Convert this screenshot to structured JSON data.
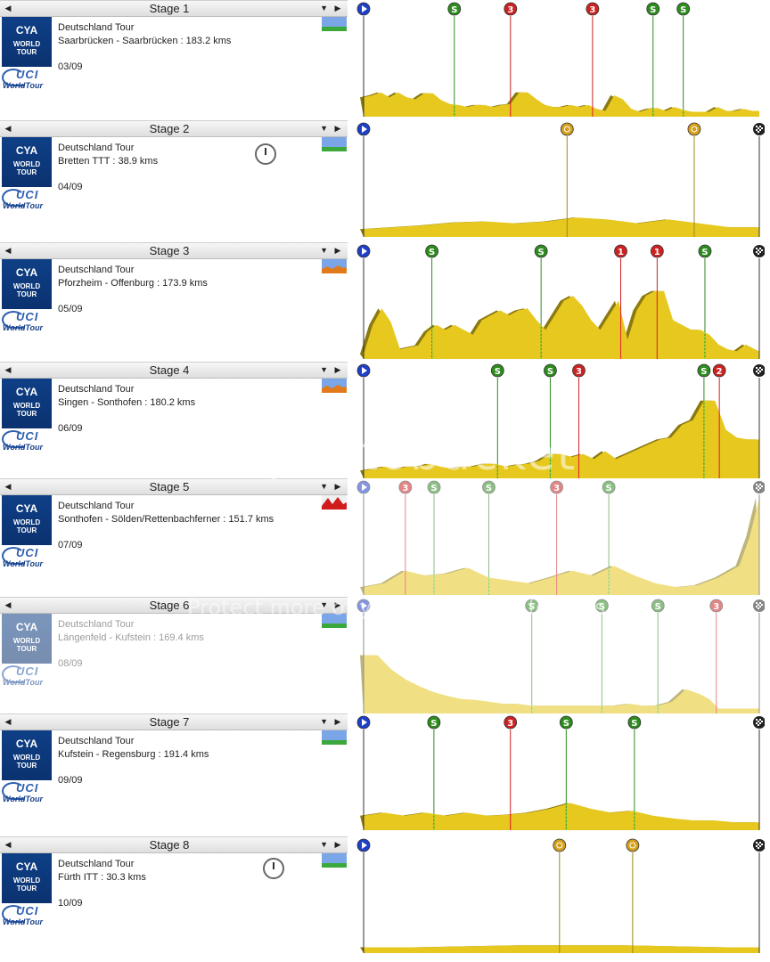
{
  "stages": [
    {
      "label": "Stage 1",
      "tour": "Deutschland Tour",
      "route": "Saarbrücken - Saarbrücken : 183.2 kms",
      "date": "03/09",
      "type": "flat",
      "finish": false,
      "profile": [
        [
          0,
          20
        ],
        [
          4,
          22
        ],
        [
          8,
          25
        ],
        [
          12,
          20
        ],
        [
          16,
          25
        ],
        [
          20,
          20
        ],
        [
          24,
          18
        ],
        [
          28,
          24
        ],
        [
          32,
          24
        ],
        [
          36,
          17
        ],
        [
          40,
          13
        ],
        [
          44,
          12
        ],
        [
          48,
          10
        ],
        [
          52,
          12
        ],
        [
          56,
          12
        ],
        [
          60,
          10
        ],
        [
          64,
          12
        ],
        [
          68,
          13
        ],
        [
          72,
          25
        ],
        [
          76,
          25
        ],
        [
          80,
          18
        ],
        [
          84,
          12
        ],
        [
          88,
          10
        ],
        [
          92,
          10
        ],
        [
          96,
          12
        ],
        [
          100,
          10
        ],
        [
          104,
          12
        ],
        [
          108,
          8
        ],
        [
          112,
          6
        ],
        [
          116,
          22
        ],
        [
          120,
          18
        ],
        [
          124,
          8
        ],
        [
          128,
          5
        ],
        [
          132,
          8
        ],
        [
          136,
          9
        ],
        [
          140,
          6
        ],
        [
          144,
          10
        ],
        [
          148,
          7
        ],
        [
          152,
          5
        ],
        [
          156,
          5
        ],
        [
          160,
          5
        ],
        [
          164,
          10
        ],
        [
          168,
          6
        ],
        [
          172,
          6
        ],
        [
          176,
          8
        ],
        [
          180,
          6
        ],
        [
          183.2,
          6
        ]
      ],
      "markers": [
        {
          "km": 0,
          "kind": "start",
          "label": ""
        },
        {
          "km": 42,
          "kind": "sprint",
          "label": "S"
        },
        {
          "km": 68,
          "kind": "climb",
          "label": "3"
        },
        {
          "km": 106,
          "kind": "climb",
          "label": "3"
        },
        {
          "km": 134,
          "kind": "sprint",
          "label": "S"
        },
        {
          "km": 148,
          "kind": "sprint",
          "label": "S"
        }
      ]
    },
    {
      "label": "Stage 2",
      "tour": "Deutschland Tour",
      "route": "Bretten TTT : 38.9 kms",
      "date": "04/09",
      "type": "flat",
      "finish": true,
      "clock": true,
      "profile": [
        [
          0,
          8
        ],
        [
          3,
          10
        ],
        [
          6,
          12
        ],
        [
          9,
          15
        ],
        [
          12,
          16
        ],
        [
          15,
          14
        ],
        [
          18,
          16
        ],
        [
          21,
          20
        ],
        [
          24,
          18
        ],
        [
          27,
          14
        ],
        [
          30,
          18
        ],
        [
          33,
          14
        ],
        [
          36,
          10
        ],
        [
          38.9,
          10
        ]
      ],
      "markers": [
        {
          "km": 0,
          "kind": "start",
          "label": ""
        },
        {
          "km": 20,
          "kind": "time",
          "label": ""
        },
        {
          "km": 32.5,
          "kind": "time",
          "label": ""
        },
        {
          "km": 38.9,
          "kind": "finish",
          "label": ""
        }
      ]
    },
    {
      "label": "Stage 3",
      "tour": "Deutschland Tour",
      "route": "Pforzheim - Offenburg : 173.9 kms",
      "date": "05/09",
      "type": "hilly",
      "finish": true,
      "profile": [
        [
          0,
          5
        ],
        [
          4,
          35
        ],
        [
          8,
          52
        ],
        [
          12,
          38
        ],
        [
          16,
          10
        ],
        [
          20,
          12
        ],
        [
          24,
          14
        ],
        [
          28,
          28
        ],
        [
          32,
          35
        ],
        [
          36,
          30
        ],
        [
          40,
          35
        ],
        [
          44,
          30
        ],
        [
          48,
          25
        ],
        [
          52,
          40
        ],
        [
          56,
          45
        ],
        [
          60,
          50
        ],
        [
          64,
          45
        ],
        [
          68,
          50
        ],
        [
          72,
          52
        ],
        [
          76,
          40
        ],
        [
          80,
          30
        ],
        [
          84,
          45
        ],
        [
          88,
          60
        ],
        [
          92,
          65
        ],
        [
          96,
          55
        ],
        [
          100,
          40
        ],
        [
          104,
          30
        ],
        [
          108,
          45
        ],
        [
          112,
          60
        ],
        [
          116,
          20
        ],
        [
          120,
          50
        ],
        [
          124,
          65
        ],
        [
          128,
          70
        ],
        [
          132,
          70
        ],
        [
          136,
          40
        ],
        [
          140,
          35
        ],
        [
          144,
          30
        ],
        [
          148,
          30
        ],
        [
          152,
          25
        ],
        [
          156,
          15
        ],
        [
          160,
          10
        ],
        [
          164,
          8
        ],
        [
          168,
          15
        ],
        [
          172,
          10
        ],
        [
          173.9,
          8
        ]
      ],
      "markers": [
        {
          "km": 0,
          "kind": "start",
          "label": ""
        },
        {
          "km": 30,
          "kind": "sprint",
          "label": "S"
        },
        {
          "km": 78,
          "kind": "sprint",
          "label": "S"
        },
        {
          "km": 113,
          "kind": "climb",
          "label": "1"
        },
        {
          "km": 129,
          "kind": "climb",
          "label": "1"
        },
        {
          "km": 150,
          "kind": "sprint",
          "label": "S"
        },
        {
          "km": 173.9,
          "kind": "finish",
          "label": ""
        }
      ]
    },
    {
      "label": "Stage 4",
      "tour": "Deutschland Tour",
      "route": "Singen - Sonthofen : 180.2 kms",
      "date": "06/09",
      "type": "hilly",
      "finish": true,
      "profile": [
        [
          0,
          8
        ],
        [
          5,
          10
        ],
        [
          10,
          12
        ],
        [
          15,
          10
        ],
        [
          20,
          12
        ],
        [
          25,
          12
        ],
        [
          30,
          15
        ],
        [
          35,
          12
        ],
        [
          40,
          10
        ],
        [
          45,
          12
        ],
        [
          50,
          12
        ],
        [
          55,
          15
        ],
        [
          60,
          15
        ],
        [
          65,
          12
        ],
        [
          70,
          14
        ],
        [
          75,
          15
        ],
        [
          80,
          18
        ],
        [
          85,
          25
        ],
        [
          90,
          25
        ],
        [
          95,
          22
        ],
        [
          100,
          25
        ],
        [
          105,
          20
        ],
        [
          110,
          28
        ],
        [
          115,
          20
        ],
        [
          120,
          25
        ],
        [
          125,
          30
        ],
        [
          130,
          35
        ],
        [
          135,
          40
        ],
        [
          140,
          42
        ],
        [
          145,
          55
        ],
        [
          150,
          60
        ],
        [
          155,
          80
        ],
        [
          160,
          80
        ],
        [
          165,
          50
        ],
        [
          170,
          42
        ],
        [
          175,
          40
        ],
        [
          180.2,
          40
        ]
      ],
      "markers": [
        {
          "km": 0,
          "kind": "start",
          "label": ""
        },
        {
          "km": 61,
          "kind": "sprint",
          "label": "S"
        },
        {
          "km": 85,
          "kind": "sprint",
          "label": "S"
        },
        {
          "km": 98,
          "kind": "climb",
          "label": "3"
        },
        {
          "km": 155,
          "kind": "sprint",
          "label": "S"
        },
        {
          "km": 162,
          "kind": "climb",
          "label": "2"
        },
        {
          "km": 180.2,
          "kind": "finish",
          "label": ""
        }
      ]
    },
    {
      "label": "Stage 5",
      "tour": "Deutschland Tour",
      "route": "Sonthofen - Sölden/Rettenbachferner : 151.7 kms",
      "date": "07/09",
      "type": "mountain",
      "finish": true,
      "faded": true,
      "profile": [
        [
          0,
          8
        ],
        [
          8,
          12
        ],
        [
          16,
          25
        ],
        [
          24,
          20
        ],
        [
          32,
          22
        ],
        [
          40,
          28
        ],
        [
          48,
          18
        ],
        [
          56,
          15
        ],
        [
          64,
          12
        ],
        [
          72,
          18
        ],
        [
          80,
          25
        ],
        [
          88,
          20
        ],
        [
          96,
          30
        ],
        [
          104,
          20
        ],
        [
          112,
          12
        ],
        [
          120,
          8
        ],
        [
          128,
          10
        ],
        [
          136,
          18
        ],
        [
          144,
          30
        ],
        [
          148,
          60
        ],
        [
          151.7,
          100
        ]
      ],
      "markers": [
        {
          "km": 0,
          "kind": "start",
          "label": ""
        },
        {
          "km": 16,
          "kind": "climb",
          "label": "3"
        },
        {
          "km": 27,
          "kind": "sprint",
          "label": "S"
        },
        {
          "km": 48,
          "kind": "sprint",
          "label": "S"
        },
        {
          "km": 74,
          "kind": "climb",
          "label": "3"
        },
        {
          "km": 94,
          "kind": "sprint",
          "label": "S"
        },
        {
          "km": 151.7,
          "kind": "finish",
          "label": ""
        }
      ]
    },
    {
      "label": "Stage 6",
      "tour": "Deutschland Tour",
      "route": "Längenfeld - Kufstein : 169.4 kms",
      "date": "08/09",
      "type": "flat",
      "finish": true,
      "faded": true,
      "profile": [
        [
          0,
          60
        ],
        [
          6,
          60
        ],
        [
          12,
          45
        ],
        [
          18,
          35
        ],
        [
          24,
          28
        ],
        [
          30,
          22
        ],
        [
          36,
          18
        ],
        [
          42,
          15
        ],
        [
          48,
          14
        ],
        [
          54,
          12
        ],
        [
          60,
          10
        ],
        [
          66,
          10
        ],
        [
          72,
          8
        ],
        [
          78,
          8
        ],
        [
          84,
          8
        ],
        [
          90,
          8
        ],
        [
          96,
          8
        ],
        [
          102,
          8
        ],
        [
          108,
          8
        ],
        [
          114,
          10
        ],
        [
          120,
          8
        ],
        [
          126,
          8
        ],
        [
          132,
          12
        ],
        [
          138,
          25
        ],
        [
          144,
          20
        ],
        [
          148,
          15
        ],
        [
          152,
          5
        ],
        [
          160,
          5
        ],
        [
          169.4,
          5
        ]
      ],
      "markers": [
        {
          "km": 0,
          "kind": "start",
          "label": ""
        },
        {
          "km": 72,
          "kind": "sprint",
          "label": "S"
        },
        {
          "km": 102,
          "kind": "sprint",
          "label": "S"
        },
        {
          "km": 126,
          "kind": "sprint",
          "label": "S"
        },
        {
          "km": 151,
          "kind": "climb",
          "label": "3"
        },
        {
          "km": 169.4,
          "kind": "finish",
          "label": ""
        }
      ]
    },
    {
      "label": "Stage 7",
      "tour": "Deutschland Tour",
      "route": "Kufstein - Regensburg : 191.4 kms",
      "date": "09/09",
      "type": "flat",
      "finish": true,
      "profile": [
        [
          0,
          15
        ],
        [
          10,
          18
        ],
        [
          20,
          15
        ],
        [
          30,
          18
        ],
        [
          40,
          15
        ],
        [
          50,
          18
        ],
        [
          60,
          15
        ],
        [
          70,
          16
        ],
        [
          80,
          18
        ],
        [
          90,
          22
        ],
        [
          100,
          28
        ],
        [
          110,
          22
        ],
        [
          120,
          18
        ],
        [
          130,
          20
        ],
        [
          140,
          15
        ],
        [
          150,
          12
        ],
        [
          160,
          10
        ],
        [
          170,
          10
        ],
        [
          180,
          8
        ],
        [
          191.4,
          8
        ]
      ],
      "markers": [
        {
          "km": 0,
          "kind": "start",
          "label": ""
        },
        {
          "km": 34,
          "kind": "sprint",
          "label": "S"
        },
        {
          "km": 71,
          "kind": "climb",
          "label": "3"
        },
        {
          "km": 98,
          "kind": "sprint",
          "label": "S"
        },
        {
          "km": 131,
          "kind": "sprint",
          "label": "S"
        },
        {
          "km": 191.4,
          "kind": "finish",
          "label": ""
        }
      ]
    },
    {
      "label": "Stage 8",
      "tour": "Deutschland Tour",
      "route": "Fürth ITT : 30.3 kms",
      "date": "10/09",
      "type": "flat",
      "finish": true,
      "clock": true,
      "profile": [
        [
          0,
          6
        ],
        [
          4,
          6
        ],
        [
          8,
          7
        ],
        [
          12,
          8
        ],
        [
          16,
          8
        ],
        [
          20,
          8
        ],
        [
          24,
          7
        ],
        [
          28,
          6
        ],
        [
          30.3,
          6
        ]
      ],
      "markers": [
        {
          "km": 0,
          "kind": "start",
          "label": ""
        },
        {
          "km": 15,
          "kind": "time",
          "label": ""
        },
        {
          "km": 20.6,
          "kind": "time",
          "label": ""
        },
        {
          "km": 30.3,
          "kind": "finish",
          "label": ""
        }
      ]
    }
  ],
  "logo": {
    "cya": "CYA",
    "world": "WORLD",
    "tour": "TOUR",
    "uci": "UCI",
    "worldtour": "WorldTour"
  },
  "watermark": {
    "text": "photobucket",
    "protect": "Protect more of your memories for less!"
  },
  "colors": {
    "terrain": "#e7c81f",
    "terrain_dark": "#8a7a10",
    "sprint": "#2e8b1e",
    "climb": "#cc2222",
    "start": "#1e3fc8",
    "time": "#d4a01a"
  }
}
